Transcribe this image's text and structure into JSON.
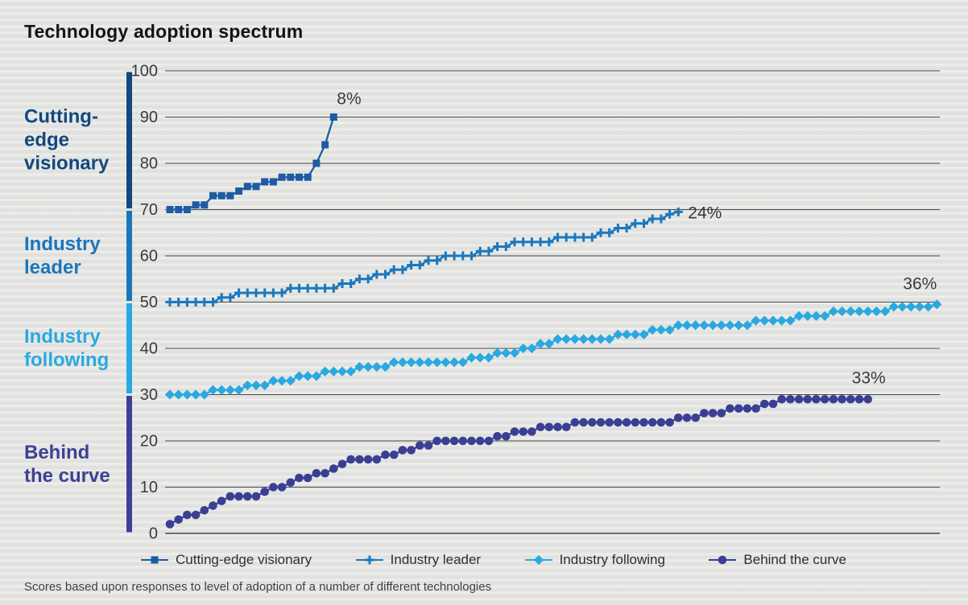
{
  "title": "Technology adoption spectrum",
  "footnote": "Scores based upon responses to level of adoption of a number of different technologies",
  "colors": {
    "background": "#e7e8e5",
    "gridline": "#47484a",
    "tick_text": "#3b3b3d",
    "percent_text": "#3b3b3d",
    "title_text": "#141414"
  },
  "chart_data": {
    "type": "line",
    "title": "Technology adoption spectrum",
    "xlabel": "",
    "ylabel": "",
    "ylim": [
      0,
      100
    ],
    "grid": true,
    "legend_position": "bottom",
    "y_axis": {
      "ticks": [
        100,
        90,
        80,
        70,
        60,
        50,
        40,
        30,
        20,
        10,
        0
      ]
    },
    "bands": [
      {
        "id": "cutting-edge-visionary",
        "lines": [
          "Cutting-",
          "edge",
          "visionary"
        ],
        "range": [
          70,
          100
        ],
        "color": "#12487e"
      },
      {
        "id": "industry-leader",
        "lines": [
          "Industry",
          "leader"
        ],
        "range": [
          50,
          70
        ],
        "color": "#1b76bc"
      },
      {
        "id": "industry-following",
        "lines": [
          "Industry",
          "following"
        ],
        "range": [
          30,
          50
        ],
        "color": "#2aa9e0"
      },
      {
        "id": "behind-the-curve",
        "lines": [
          "Behind",
          "the curve"
        ],
        "range": [
          0,
          30
        ],
        "color": "#3e4095"
      }
    ],
    "series": [
      {
        "id": "cutting-edge-visionary",
        "name": "Cutting-edge visionary",
        "marker": "square",
        "color": "#1e5ba4",
        "percent_label": "8%",
        "label_anchor": "start",
        "label_dx": 4,
        "label_dy": -16,
        "values": [
          70,
          70,
          70,
          71,
          71,
          73,
          73,
          73,
          74,
          75,
          75,
          76,
          76,
          77,
          77,
          77,
          77,
          80,
          84,
          90
        ]
      },
      {
        "id": "industry-leader",
        "name": "Industry leader",
        "marker": "plus",
        "color": "#1b78be",
        "percent_label": "24%",
        "label_anchor": "start",
        "label_dx": 12,
        "label_dy": 8,
        "values": [
          50,
          50,
          50,
          50,
          50,
          50,
          51,
          51,
          52,
          52,
          52,
          52,
          52,
          52,
          53,
          53,
          53,
          53,
          53,
          53,
          54,
          54,
          55,
          55,
          56,
          56,
          57,
          57,
          58,
          58,
          59,
          59,
          60,
          60,
          60,
          60,
          61,
          61,
          62,
          62,
          63,
          63,
          63,
          63,
          63,
          64,
          64,
          64,
          64,
          64,
          65,
          65,
          66,
          66,
          67,
          67,
          68,
          68,
          69,
          69.5
        ]
      },
      {
        "id": "industry-following",
        "name": "Industry following",
        "marker": "diamond",
        "color": "#2aa9e0",
        "percent_label": "36%",
        "label_anchor": "end",
        "label_dx": 0,
        "label_dy": -19,
        "values": [
          30,
          30,
          30,
          30,
          30,
          31,
          31,
          31,
          31,
          32,
          32,
          32,
          33,
          33,
          33,
          34,
          34,
          34,
          35,
          35,
          35,
          35,
          36,
          36,
          36,
          36,
          37,
          37,
          37,
          37,
          37,
          37,
          37,
          37,
          37,
          38,
          38,
          38,
          39,
          39,
          39,
          40,
          40,
          41,
          41,
          42,
          42,
          42,
          42,
          42,
          42,
          42,
          43,
          43,
          43,
          43,
          44,
          44,
          44,
          45,
          45,
          45,
          45,
          45,
          45,
          45,
          45,
          45,
          46,
          46,
          46,
          46,
          46,
          47,
          47,
          47,
          47,
          48,
          48,
          48,
          48,
          48,
          48,
          48,
          49,
          49,
          49,
          49,
          49,
          49.5
        ]
      },
      {
        "id": "behind-the-curve",
        "name": "Behind the curve",
        "marker": "circle",
        "color": "#3b3f94",
        "percent_label": "33%",
        "label_anchor": "end",
        "label_dx": 22,
        "label_dy": -20,
        "values": [
          2,
          3,
          4,
          4,
          5,
          6,
          7,
          8,
          8,
          8,
          8,
          9,
          10,
          10,
          11,
          12,
          12,
          13,
          13,
          14,
          15,
          16,
          16,
          16,
          16,
          17,
          17,
          18,
          18,
          19,
          19,
          20,
          20,
          20,
          20,
          20,
          20,
          20,
          21,
          21,
          22,
          22,
          22,
          23,
          23,
          23,
          23,
          24,
          24,
          24,
          24,
          24,
          24,
          24,
          24,
          24,
          24,
          24,
          24,
          25,
          25,
          25,
          26,
          26,
          26,
          27,
          27,
          27,
          27,
          28,
          28,
          29,
          29,
          29,
          29,
          29,
          29,
          29,
          29,
          29,
          29,
          29
        ]
      }
    ]
  }
}
